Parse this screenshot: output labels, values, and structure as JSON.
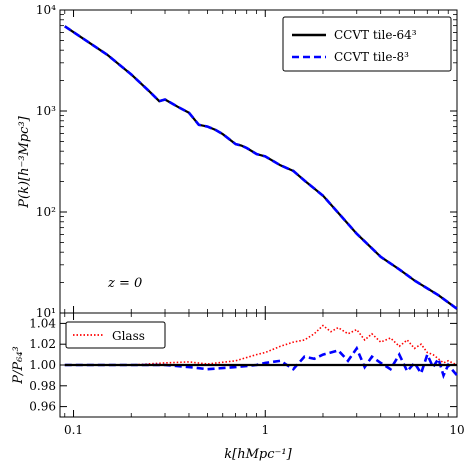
{
  "chart_data": [
    {
      "type": "line",
      "panel": "top",
      "xscale": "log",
      "yscale": "log",
      "xlim": [
        0.085,
        10
      ],
      "ylim": [
        10,
        10000
      ],
      "xlabel": "k[hMpc⁻¹]",
      "ylabel": "P(k)[h⁻³Mpc³]",
      "xticks": [
        "0.1",
        "1",
        "10"
      ],
      "yticks": [
        "10¹",
        "10²",
        "10³",
        "10⁴"
      ],
      "annotation": "z = 0",
      "legend_position": "top-right",
      "x": [
        0.09,
        0.15,
        0.2,
        0.25,
        0.28,
        0.3,
        0.35,
        0.4,
        0.45,
        0.5,
        0.55,
        0.6,
        0.7,
        0.75,
        0.8,
        0.9,
        1.0,
        1.2,
        1.4,
        1.6,
        2.0,
        2.5,
        3.0,
        4.0,
        5.0,
        6.0,
        8.0,
        10.0
      ],
      "series": [
        {
          "name": "CCVT tile-64³",
          "color": "#000000",
          "style": "solid",
          "values": [
            6900,
            3600,
            2300,
            1550,
            1250,
            1300,
            1100,
            960,
            730,
            700,
            650,
            590,
            470,
            455,
            430,
            375,
            355,
            290,
            255,
            205,
            145,
            90,
            61,
            36,
            27,
            21,
            15,
            11
          ]
        },
        {
          "name": "CCVT tile-8³",
          "color": "#0000ff",
          "style": "dashed",
          "values": [
            6900,
            3600,
            2300,
            1550,
            1250,
            1300,
            1100,
            960,
            730,
            700,
            650,
            590,
            470,
            455,
            430,
            375,
            355,
            290,
            255,
            205,
            145,
            90,
            61,
            36,
            27,
            21,
            15,
            11
          ]
        }
      ]
    },
    {
      "type": "line",
      "panel": "bottom",
      "xscale": "log",
      "ylim": [
        0.95,
        1.05
      ],
      "xlim": [
        0.085,
        10
      ],
      "ylabel": "P/P₆₄³",
      "xlabel": "k[hMpc⁻¹]",
      "xticks": [
        "0.1",
        "1",
        "10"
      ],
      "yticks": [
        "0.96",
        "0.98",
        "1.00",
        "1.02",
        "1.04"
      ],
      "legend_position": "top-left",
      "x": [
        0.09,
        0.2,
        0.3,
        0.4,
        0.5,
        0.7,
        0.9,
        1.0,
        1.2,
        1.4,
        1.6,
        1.8,
        2.0,
        2.2,
        2.4,
        2.7,
        3.0,
        3.3,
        3.6,
        4.0,
        4.5,
        5.0,
        5.5,
        6.0,
        6.5,
        7.0,
        7.5,
        8.0,
        8.5,
        9.0,
        10.0
      ],
      "series": [
        {
          "name": "Glass",
          "color": "#ff0000",
          "style": "dotted",
          "values": [
            1.0,
            1.0,
            1.002,
            1.003,
            1.001,
            1.004,
            1.01,
            1.012,
            1.018,
            1.022,
            1.024,
            1.03,
            1.038,
            1.032,
            1.036,
            1.03,
            1.034,
            1.024,
            1.03,
            1.022,
            1.026,
            1.018,
            1.024,
            1.016,
            1.02,
            1.012,
            1.01,
            1.006,
            1.002,
            1.004,
            1.0
          ]
        },
        {
          "name": "",
          "color": "#0000ff",
          "style": "dashed",
          "values": [
            1.0,
            1.0,
            1.0,
            0.998,
            0.996,
            0.998,
            1.0,
            1.002,
            1.004,
            0.996,
            1.008,
            1.006,
            1.01,
            1.012,
            1.014,
            1.004,
            1.016,
            0.998,
            1.008,
            1.002,
            0.996,
            1.01,
            0.994,
            1.002,
            0.992,
            1.01,
            0.998,
            1.006,
            0.99,
            1.0,
            0.99
          ]
        },
        {
          "name": "",
          "color": "#000000",
          "style": "solid",
          "values": [
            1.0,
            1.0,
            1.0,
            1.0,
            1.0,
            1.0,
            1.0,
            1.0,
            1.0,
            1.0,
            1.0,
            1.0,
            1.0,
            1.0,
            1.0,
            1.0,
            1.0,
            1.0,
            1.0,
            1.0,
            1.0,
            1.0,
            1.0,
            1.0,
            1.0,
            1.0,
            1.0,
            1.0,
            1.0,
            1.0,
            1.0
          ]
        }
      ]
    }
  ]
}
